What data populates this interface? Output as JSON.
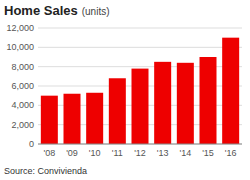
{
  "chart_data": {
    "type": "bar",
    "title": "Home Sales",
    "subtitle": "(units)",
    "source": "Source: Convivienda",
    "categories": [
      "'08",
      "'09",
      "'10",
      "'11",
      "'12",
      "'13",
      "'14",
      "'15",
      "'16"
    ],
    "values": [
      5000,
      5200,
      5300,
      6800,
      7800,
      8500,
      8400,
      9000,
      11000
    ],
    "color": "#ee0000",
    "ylim": [
      0,
      12000
    ],
    "yticks": [
      0,
      {
        "value": 2000,
        "label": "2,000"
      },
      {
        "value": 4000,
        "label": "4,000"
      },
      {
        "value": 6000,
        "label": "6,000"
      },
      {
        "value": 8000,
        "label": "8,000"
      },
      {
        "value": 10000,
        "label": "10,000"
      },
      {
        "value": 12000,
        "label": "12,000"
      }
    ],
    "grid": true
  }
}
